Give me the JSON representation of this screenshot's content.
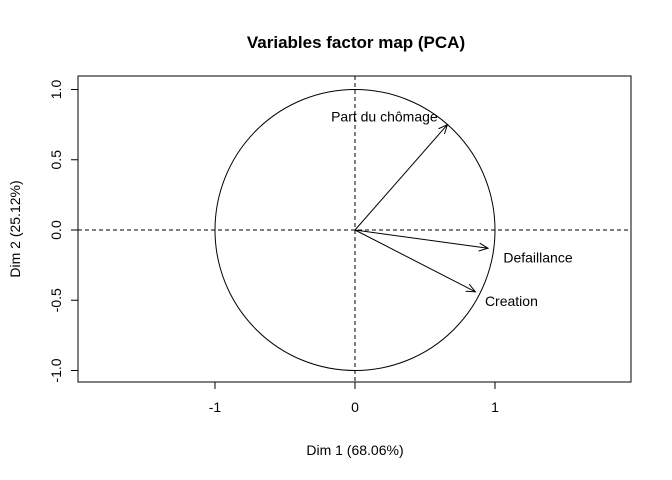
{
  "chart_data": {
    "type": "scatter",
    "title": "Variables factor map (PCA)",
    "xlabel": "Dim 1 (68.06%)",
    "ylabel": "Dim 2 (25.12%)",
    "xlim": [
      -2,
      2
    ],
    "ylim": [
      -1.08,
      1.08
    ],
    "xticks": [
      -1,
      0,
      1
    ],
    "yticks": [
      -1.0,
      -0.5,
      0.0,
      0.5,
      1.0
    ],
    "xtick_labels": [
      "-1",
      "0",
      "1"
    ],
    "ytick_labels": [
      "-1.0",
      "-0.5",
      "0.0",
      "0.5",
      "1.0"
    ],
    "unit_circle": true,
    "reference_lines": [
      0,
      0
    ],
    "variables": [
      {
        "name": "Part du chômage",
        "x": 0.66,
        "y": 0.75
      },
      {
        "name": "Defaillance",
        "x": 0.95,
        "y": -0.13
      },
      {
        "name": "Creation",
        "x": 0.86,
        "y": -0.44
      }
    ]
  }
}
